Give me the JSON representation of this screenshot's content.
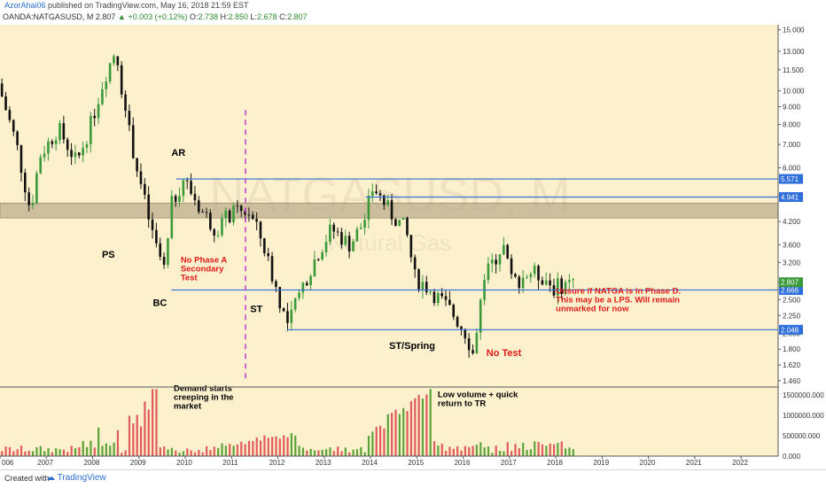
{
  "header": {
    "author": "AzorAhai06",
    "published_text": " published on TradingView.com, May 16, 2018 21:59 EST",
    "symbol_line": "OANDA:NATGASUSD, M",
    "last": "2.807",
    "change": "+0.003 (+0.12%)",
    "o_label": "O:",
    "o_value": "2.738",
    "h_label": "H:",
    "h_value": "2.850",
    "l_label": "L:",
    "l_value": "2.678",
    "c_label": "C:",
    "c_value": "2.807"
  },
  "watermark": {
    "symbol": "NATGASUSD, M",
    "name": "Natural Gas"
  },
  "footer": {
    "created_with": "Created with",
    "brand": "TradingView"
  },
  "colors": {
    "background": "#fdf1cd",
    "up": "#3a9a3a",
    "down": "#111111",
    "level_line": "#2f6fdc",
    "zone": "#b8a98a",
    "annotation_red": "#e01a1a",
    "vertical_marker": "#c03ad6",
    "volume_up": "#5aa43a",
    "volume_down": "#e05b5b"
  },
  "chart_data": {
    "type": "candlestick",
    "symbol": "OANDA:NATGASUSD",
    "timeframe": "M",
    "y_scale": "log",
    "ylim": [
      1.4,
      15.5
    ],
    "xlim": [
      2006.0,
      2022.8
    ],
    "y_ticks": [
      "15.000",
      "13.000",
      "11.500",
      "10.000",
      "9.000",
      "8.000",
      "7.000",
      "6.000",
      "5.000",
      "4.200",
      "3.600",
      "3.200",
      "2.800",
      "2.500",
      "2.250",
      "2.000",
      "1.800",
      "1.620",
      "1.460"
    ],
    "x_ticks": [
      "006",
      "2007",
      "2008",
      "2009",
      "2010",
      "2011",
      "2012",
      "2013",
      "2014",
      "2015",
      "2016",
      "2017",
      "2018",
      "2019",
      "2020",
      "2021",
      "2022"
    ],
    "price_path": [
      [
        2006.0,
        10.5
      ],
      [
        2006.4,
        7.0
      ],
      [
        2006.7,
        4.5
      ],
      [
        2006.9,
        6.5
      ],
      [
        2007.3,
        7.8
      ],
      [
        2007.7,
        6.2
      ],
      [
        2008.0,
        8.0
      ],
      [
        2008.3,
        11.0
      ],
      [
        2008.55,
        13.3
      ],
      [
        2008.75,
        8.5
      ],
      [
        2009.0,
        6.0
      ],
      [
        2009.3,
        4.0
      ],
      [
        2009.6,
        3.0
      ],
      [
        2009.75,
        4.7
      ],
      [
        2010.0,
        5.6
      ],
      [
        2010.4,
        4.5
      ],
      [
        2010.7,
        4.0
      ],
      [
        2011.0,
        4.4
      ],
      [
        2011.4,
        4.5
      ],
      [
        2011.7,
        3.7
      ],
      [
        2012.0,
        2.7
      ],
      [
        2012.25,
        2.1
      ],
      [
        2012.6,
        2.8
      ],
      [
        2012.9,
        3.4
      ],
      [
        2013.2,
        4.0
      ],
      [
        2013.6,
        3.6
      ],
      [
        2013.9,
        4.2
      ],
      [
        2014.1,
        5.3
      ],
      [
        2014.5,
        4.4
      ],
      [
        2014.8,
        4.0
      ],
      [
        2015.0,
        2.9
      ],
      [
        2015.3,
        2.7
      ],
      [
        2015.8,
        2.3
      ],
      [
        2016.1,
        2.0
      ],
      [
        2016.25,
        1.75
      ],
      [
        2016.5,
        2.9
      ],
      [
        2016.9,
        3.6
      ],
      [
        2017.1,
        2.8
      ],
      [
        2017.5,
        3.0
      ],
      [
        2017.8,
        2.9
      ],
      [
        2018.0,
        2.7
      ],
      [
        2018.3,
        2.8
      ]
    ],
    "levels": [
      {
        "value": 5.571,
        "label": "5.571"
      },
      {
        "value": 4.941,
        "label": "4.941"
      },
      {
        "value": 2.666,
        "label": "2.666"
      },
      {
        "value": 2.048,
        "label": "2.048"
      }
    ],
    "current_price": {
      "value": 2.807,
      "label": "2.807"
    },
    "zone": [
      4.3,
      4.75
    ],
    "vertical_marker_x": 2011.3,
    "annotations": [
      {
        "text": "AR",
        "x": 2009.7,
        "y": 6.5,
        "color": "black"
      },
      {
        "text": "PS",
        "x": 2008.2,
        "y": 3.3,
        "color": "black"
      },
      {
        "text": "BC",
        "x": 2009.3,
        "y": 2.4,
        "color": "black"
      },
      {
        "text": "ST",
        "x": 2011.4,
        "y": 2.3,
        "color": "black"
      },
      {
        "text": "ST/Spring",
        "x": 2014.4,
        "y": 1.8,
        "color": "black"
      },
      {
        "lines": [
          "No Phase A",
          "Secondary",
          "Test"
        ],
        "x": 2009.9,
        "y": 3.2,
        "color": "red"
      },
      {
        "text": "No Test",
        "x": 2016.5,
        "y": 1.72,
        "color": "red"
      },
      {
        "lines": [
          "Unsure if NATGA is in Phase D.",
          "This may be a LPS. Will remain",
          "unmarked for now"
        ],
        "x": 2018.0,
        "y": 2.6,
        "color": "red"
      }
    ],
    "volume": {
      "y_ticks": [
        "1500000.000",
        "1000000.000",
        "500000.000",
        "0.000"
      ],
      "ylim": [
        0,
        1700000
      ],
      "annotations": [
        {
          "lines": [
            "Demand starts",
            "creeping in the",
            "market"
          ],
          "x": 2009.75,
          "y": 1600000
        },
        {
          "lines": [
            "Low volume + quick",
            "return to TR"
          ],
          "x": 2015.45,
          "y": 1450000
        }
      ]
    }
  }
}
